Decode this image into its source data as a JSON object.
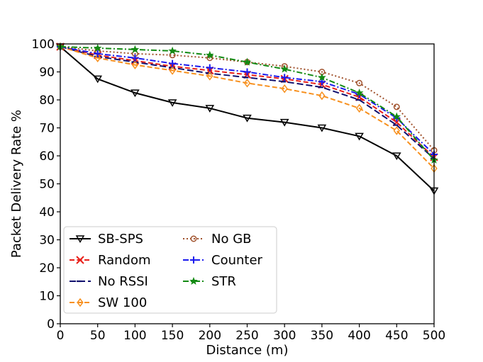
{
  "chart_data": {
    "type": "line",
    "title": "",
    "xlabel": "Distance (m)",
    "ylabel": "Packet Delivery Rate %",
    "xlim": [
      0,
      500
    ],
    "ylim": [
      0,
      100
    ],
    "xticks": [
      0,
      50,
      100,
      150,
      200,
      250,
      300,
      350,
      400,
      450,
      500
    ],
    "yticks": [
      0,
      10,
      20,
      30,
      40,
      50,
      60,
      70,
      80,
      90,
      100
    ],
    "grid": false,
    "legend_position": "lower-left",
    "x": [
      0,
      50,
      100,
      150,
      200,
      250,
      300,
      350,
      400,
      450,
      500
    ],
    "series": [
      {
        "name": "SB-SPS",
        "color": "#000000",
        "marker": "triangle-down",
        "dash": "solid",
        "values": [
          99,
          87.5,
          82.5,
          79,
          77,
          73.5,
          72,
          70,
          67,
          60,
          47.5
        ]
      },
      {
        "name": "Random",
        "color": "#e8201a",
        "marker": "x",
        "dash": "dashed",
        "values": [
          99,
          96,
          94,
          92,
          90.5,
          89,
          87.5,
          85.5,
          81,
          72,
          59.5
        ]
      },
      {
        "name": "No RSSI",
        "color": "#10106e",
        "marker": "tick-left",
        "dash": "longdash",
        "values": [
          99,
          95.5,
          93.5,
          91.5,
          89.5,
          88,
          86.5,
          84.5,
          80,
          71,
          59
        ]
      },
      {
        "name": "SW 100",
        "color": "#f7901e",
        "marker": "thin-diamond",
        "dash": "dashed",
        "values": [
          99,
          95,
          92.5,
          90.5,
          88.5,
          86,
          84,
          81.5,
          77,
          69,
          55.5
        ]
      },
      {
        "name": "No GB",
        "color": "#a0522d",
        "marker": "circle",
        "dash": "dotted",
        "values": [
          99,
          97.5,
          96.5,
          96,
          95,
          93.5,
          92,
          90,
          86,
          77.5,
          62
        ]
      },
      {
        "name": "Counter",
        "color": "#1a1aee",
        "marker": "plus",
        "dash": "dashdot",
        "values": [
          99,
          96.5,
          95,
          93,
          91.5,
          90,
          88,
          86.5,
          82,
          73.5,
          60.5
        ]
      },
      {
        "name": "STR",
        "color": "#138a13",
        "marker": "star",
        "dash": "dashdot",
        "values": [
          99,
          98.5,
          98,
          97.5,
          96,
          93.5,
          91,
          88,
          82.5,
          74,
          58.5
        ]
      }
    ]
  }
}
